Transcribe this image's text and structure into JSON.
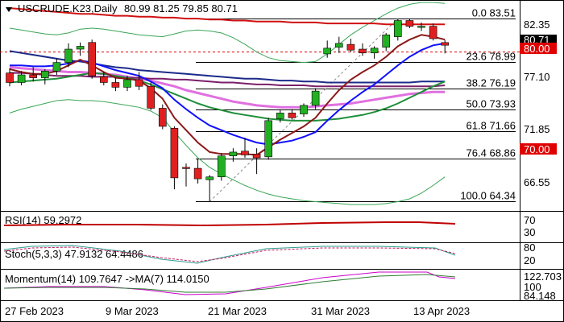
{
  "header": {
    "symbol": "USCRUDE.K23,Daily",
    "ohlc": "80.99 81.25 79.85 80.71"
  },
  "price_axis": {
    "ticks": [
      "82.35",
      "77.10",
      "71.85",
      "66.55"
    ],
    "last_price": "80.71",
    "ref_price": "80.00",
    "ref_price2": "70.00"
  },
  "date_axis": [
    "27 Feb 2023",
    "9 Mar 2023",
    "21 Mar 2023",
    "31 Mar 2023",
    "13 Apr 2023"
  ],
  "fib_levels": [
    {
      "label": "0.0 83.51"
    },
    {
      "label": "23.6 78.99"
    },
    {
      "label": "38.2 76.19"
    },
    {
      "label": "50.0 73.93"
    },
    {
      "label": "61.8 71.66"
    },
    {
      "label": "76.4 68.86"
    },
    {
      "label": "100.0 64.34"
    }
  ],
  "rsi": {
    "label": "RSI(14) 59.2972",
    "ticks": [
      "70",
      "30"
    ]
  },
  "stoch": {
    "label": "Stoch(5,3,3) 47.9132 64.4486",
    "ticks": [
      "80",
      "20"
    ]
  },
  "momentum": {
    "label": "Momentum(14) 109.7647   ->MA(7) 114.0150",
    "ticks": [
      "122.703",
      "100",
      "84.148"
    ]
  },
  "colors": {
    "bull": "#22b022",
    "bear": "#e02020",
    "fib": "#000000"
  },
  "chart_data": {
    "type": "candlestick",
    "title": "USCRUDE.K23,Daily",
    "ylim": [
      63.5,
      85.2
    ],
    "candles": [
      {
        "o": 77.8,
        "h": 78.3,
        "l": 76.4,
        "c": 76.8
      },
      {
        "o": 76.8,
        "h": 78.0,
        "l": 76.5,
        "c": 77.6
      },
      {
        "o": 77.6,
        "h": 78.4,
        "l": 76.9,
        "c": 77.3
      },
      {
        "o": 77.3,
        "h": 78.2,
        "l": 76.6,
        "c": 78.0
      },
      {
        "o": 78.0,
        "h": 79.3,
        "l": 77.6,
        "c": 78.9
      },
      {
        "o": 78.9,
        "h": 80.9,
        "l": 78.4,
        "c": 80.3
      },
      {
        "o": 80.3,
        "h": 81.0,
        "l": 79.6,
        "c": 80.6
      },
      {
        "o": 81.0,
        "h": 81.3,
        "l": 77.2,
        "c": 77.5
      },
      {
        "o": 77.4,
        "h": 77.9,
        "l": 76.5,
        "c": 76.8
      },
      {
        "o": 76.8,
        "h": 77.3,
        "l": 75.9,
        "c": 76.3
      },
      {
        "o": 76.3,
        "h": 77.5,
        "l": 75.9,
        "c": 77.1
      },
      {
        "o": 77.1,
        "h": 77.9,
        "l": 76.0,
        "c": 76.4
      },
      {
        "o": 76.4,
        "h": 76.8,
        "l": 73.9,
        "c": 74.1
      },
      {
        "o": 74.1,
        "h": 74.5,
        "l": 71.9,
        "c": 72.2
      },
      {
        "o": 72.0,
        "h": 72.2,
        "l": 65.6,
        "c": 66.8
      },
      {
        "o": 67.9,
        "h": 68.3,
        "l": 65.9,
        "c": 67.8
      },
      {
        "o": 67.8,
        "h": 68.8,
        "l": 66.2,
        "c": 66.7
      },
      {
        "o": 66.6,
        "h": 67.1,
        "l": 64.3,
        "c": 66.9
      },
      {
        "o": 66.9,
        "h": 69.4,
        "l": 66.5,
        "c": 69.1
      },
      {
        "o": 69.1,
        "h": 69.9,
        "l": 68.5,
        "c": 69.5
      },
      {
        "o": 69.6,
        "h": 71.0,
        "l": 68.9,
        "c": 69.2
      },
      {
        "o": 69.3,
        "h": 69.9,
        "l": 67.2,
        "c": 68.9
      },
      {
        "o": 69.0,
        "h": 73.1,
        "l": 68.7,
        "c": 72.8
      },
      {
        "o": 73.0,
        "h": 73.9,
        "l": 72.6,
        "c": 73.6
      },
      {
        "o": 73.6,
        "h": 74.0,
        "l": 72.9,
        "c": 73.1
      },
      {
        "o": 73.5,
        "h": 74.6,
        "l": 73.2,
        "c": 74.4
      },
      {
        "o": 74.4,
        "h": 76.2,
        "l": 74.0,
        "c": 75.9
      },
      {
        "o": 79.8,
        "h": 81.2,
        "l": 79.4,
        "c": 80.4
      },
      {
        "o": 80.5,
        "h": 81.6,
        "l": 79.9,
        "c": 80.9
      },
      {
        "o": 80.8,
        "h": 81.4,
        "l": 80.0,
        "c": 80.2
      },
      {
        "o": 80.3,
        "h": 80.9,
        "l": 79.6,
        "c": 79.9
      },
      {
        "o": 79.9,
        "h": 80.6,
        "l": 79.3,
        "c": 80.4
      },
      {
        "o": 80.5,
        "h": 82.0,
        "l": 80.1,
        "c": 81.8
      },
      {
        "o": 81.6,
        "h": 83.5,
        "l": 81.2,
        "c": 83.3
      },
      {
        "o": 83.3,
        "h": 83.5,
        "l": 82.5,
        "c": 82.7
      },
      {
        "o": 82.7,
        "h": 83.1,
        "l": 82.2,
        "c": 82.7
      },
      {
        "o": 82.7,
        "h": 83.0,
        "l": 81.2,
        "c": 81.4
      },
      {
        "o": 80.99,
        "h": 81.25,
        "l": 79.85,
        "c": 80.71
      }
    ],
    "sma_red": [
      84.6,
      84.5,
      84.4,
      84.3,
      84.2,
      84.1,
      84.0,
      84.0,
      83.9,
      83.8,
      83.8,
      83.7,
      83.7,
      83.6,
      83.6,
      83.5,
      83.5,
      83.4,
      83.4,
      83.3,
      83.3,
      83.2,
      83.2,
      83.2,
      83.1,
      83.1,
      83.1,
      83.0,
      83.0,
      83.0,
      83.0,
      83.0,
      82.9,
      82.9,
      82.9,
      82.9,
      82.9,
      82.9
    ],
    "sma_navy": [
      80.1,
      79.9,
      79.7,
      79.5,
      79.3,
      79.1,
      79.0,
      78.8,
      78.6,
      78.4,
      78.3,
      78.1,
      78.0,
      77.9,
      77.8,
      77.7,
      77.6,
      77.5,
      77.4,
      77.3,
      77.2,
      77.2,
      77.1,
      77.0,
      77.0,
      76.9,
      76.9,
      76.8,
      76.8,
      76.8,
      76.8,
      76.8,
      76.8,
      76.8,
      76.8,
      76.9,
      76.9,
      76.9
    ],
    "sma_purple": [
      77.8,
      77.8,
      77.7,
      77.6,
      77.5,
      77.5,
      77.5,
      77.4,
      77.4,
      77.4,
      77.3,
      77.3,
      77.2,
      77.2,
      77.1,
      77.1,
      77.0,
      76.9,
      76.8,
      76.8,
      76.7,
      76.6,
      76.6,
      76.5,
      76.5,
      76.5,
      76.4,
      76.4,
      76.4,
      76.4,
      76.4,
      76.4,
      76.4,
      76.4,
      76.4,
      76.4,
      76.4,
      76.5
    ],
    "sma_magenta": [
      78.4,
      78.3,
      78.2,
      78.1,
      78.0,
      77.9,
      77.9,
      77.8,
      77.7,
      77.6,
      77.4,
      77.2,
      77.0,
      76.7,
      76.4,
      76.0,
      75.7,
      75.4,
      75.1,
      74.8,
      74.6,
      74.4,
      74.3,
      74.2,
      74.2,
      74.2,
      74.3,
      74.4,
      74.5,
      74.6,
      74.8,
      75.0,
      75.2,
      75.4,
      75.6,
      75.7,
      75.8,
      75.8
    ],
    "sma_green": [
      76.8,
      76.9,
      77.0,
      77.1,
      77.2,
      77.4,
      77.6,
      77.8,
      77.7,
      77.5,
      77.3,
      77.0,
      76.6,
      76.1,
      75.6,
      75.1,
      74.6,
      74.2,
      73.9,
      73.6,
      73.4,
      73.2,
      73.0,
      72.9,
      72.8,
      72.8,
      72.8,
      72.9,
      73.0,
      73.2,
      73.4,
      73.7,
      74.1,
      74.6,
      75.2,
      75.8,
      76.4,
      76.9
    ],
    "ema_blue": [
      78.6,
      78.6,
      78.5,
      78.5,
      78.6,
      78.8,
      79.1,
      78.9,
      78.5,
      78.1,
      77.8,
      77.5,
      76.9,
      76.2,
      75.0,
      74.0,
      73.1,
      72.3,
      71.8,
      71.3,
      70.9,
      70.5,
      70.3,
      70.5,
      70.7,
      71.1,
      71.6,
      72.8,
      73.9,
      74.9,
      75.8,
      76.6,
      77.6,
      78.6,
      79.5,
      80.2,
      80.7,
      80.9
    ],
    "ema_darkred": [
      78.2,
      77.9,
      77.7,
      77.7,
      78.0,
      78.6,
      79.2,
      78.6,
      77.9,
      77.3,
      77.2,
      77.0,
      76.2,
      75.1,
      73.1,
      71.8,
      70.5,
      69.5,
      69.3,
      69.3,
      69.3,
      69.2,
      70.0,
      70.8,
      71.5,
      72.2,
      73.1,
      74.6,
      76.0,
      77.1,
      77.9,
      78.6,
      79.5,
      80.6,
      81.3,
      81.8,
      81.6,
      81.3
    ],
    "bb_upper": [
      82.5,
      82.3,
      82.1,
      81.9,
      81.8,
      82.0,
      82.4,
      82.5,
      82.4,
      82.2,
      82.0,
      81.8,
      81.7,
      81.6,
      81.9,
      82.2,
      82.3,
      82.2,
      82.0,
      81.5,
      80.8,
      80.0,
      79.4,
      79.1,
      79.0,
      78.9,
      79.0,
      79.8,
      80.8,
      81.8,
      82.6,
      83.3,
      84.0,
      84.6,
      85.0,
      85.2,
      85.2,
      85.1
    ],
    "bb_lower": [
      73.6,
      74.0,
      74.3,
      74.6,
      74.9,
      75.0,
      74.9,
      74.9,
      74.8,
      74.6,
      74.4,
      74.2,
      73.8,
      73.1,
      71.6,
      70.2,
      68.9,
      67.9,
      67.2,
      66.6,
      66.0,
      65.5,
      65.1,
      64.8,
      64.6,
      64.4,
      64.3,
      64.2,
      64.1,
      64.0,
      64.0,
      64.0,
      64.1,
      64.3,
      64.6,
      65.2,
      66.0,
      66.9
    ]
  }
}
